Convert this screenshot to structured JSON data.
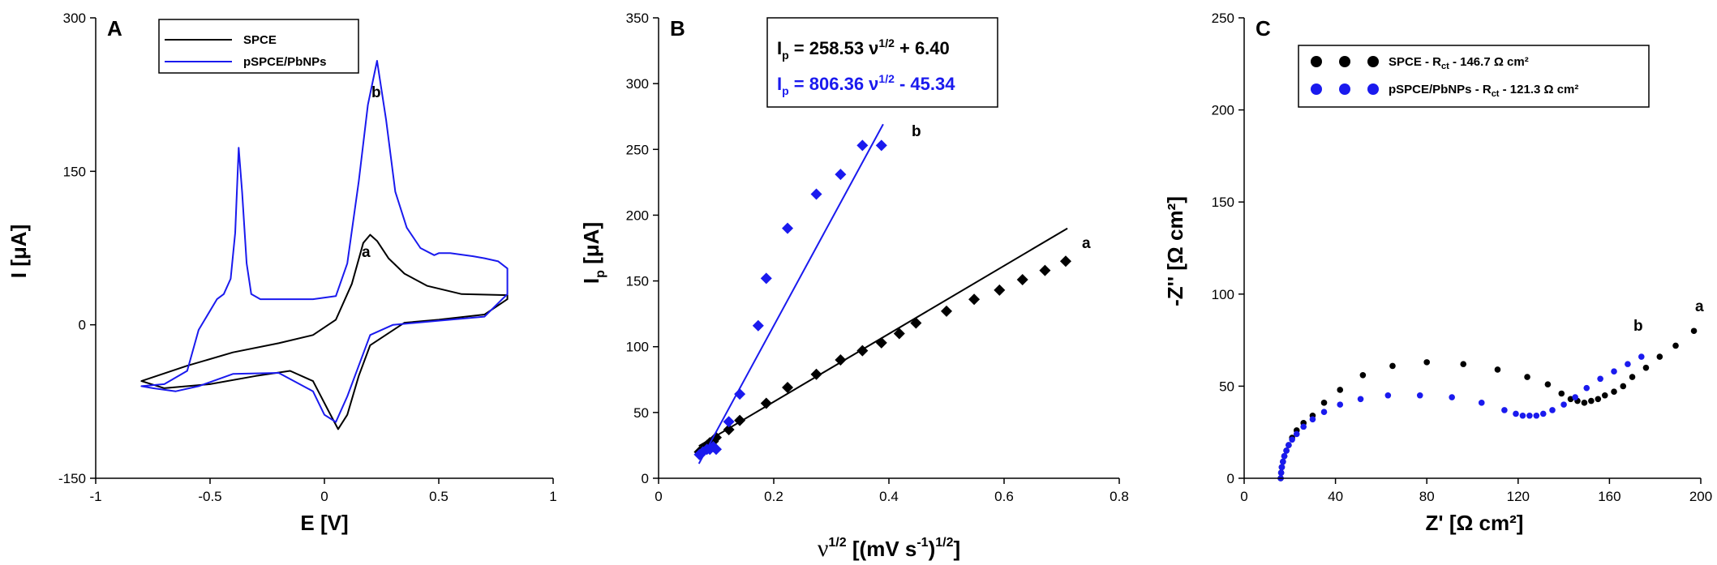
{
  "colors": {
    "black": "#000000",
    "blue": "#1a1aee"
  },
  "panels": [
    {
      "chart_data": {
        "type": "line",
        "panel_label": "A",
        "xlabel": "E [V]",
        "ylabel": "I [μA]",
        "xlim": [
          -1,
          1
        ],
        "ylim": [
          -150,
          300
        ],
        "x_ticks": [
          "-1",
          "-0.5",
          "0",
          "0.5",
          "1"
        ],
        "y_ticks": [
          "-150",
          "0",
          "150",
          "300"
        ],
        "legend": [
          "SPCE",
          "pSPCE/PbNPs"
        ],
        "curve_labels": [
          "a",
          "b"
        ],
        "series": [
          {
            "name": "SPCE",
            "color": "#000000",
            "x": [
              -0.8,
              -0.6,
              -0.4,
              -0.2,
              -0.05,
              0.05,
              0.12,
              0.17,
              0.2,
              0.23,
              0.28,
              0.35,
              0.45,
              0.6,
              0.8,
              0.8,
              0.7,
              0.5,
              0.35,
              0.2,
              0.15,
              0.1,
              0.06,
              0.02,
              -0.05,
              -0.15,
              -0.3,
              -0.5,
              -0.7,
              -0.8
            ],
            "y": [
              -55,
              -40,
              -27,
              -18,
              -10,
              5,
              40,
              80,
              88,
              82,
              65,
              50,
              38,
              30,
              29,
              25,
              10,
              5,
              2,
              -20,
              -50,
              -88,
              -102,
              -85,
              -55,
              -45,
              -50,
              -58,
              -62,
              -55
            ]
          },
          {
            "name": "pSPCE/PbNPs",
            "color": "#1a1aee",
            "x": [
              -0.8,
              -0.7,
              -0.6,
              -0.55,
              -0.47,
              -0.44,
              -0.41,
              -0.39,
              -0.375,
              -0.36,
              -0.34,
              -0.32,
              -0.28,
              -0.2,
              -0.05,
              0.05,
              0.1,
              0.15,
              0.19,
              0.23,
              0.27,
              0.31,
              0.36,
              0.42,
              0.48,
              0.5,
              0.55,
              0.65,
              0.7,
              0.76,
              0.8,
              0.8,
              0.7,
              0.5,
              0.3,
              0.2,
              0.15,
              0.1,
              0.05,
              0.0,
              -0.05,
              -0.2,
              -0.4,
              -0.55,
              -0.65,
              -0.75,
              -0.8
            ],
            "y": [
              -60,
              -58,
              -45,
              -5,
              25,
              30,
              45,
              90,
              173,
              130,
              60,
              30,
              25,
              25,
              25,
              28,
              60,
              140,
              215,
              258,
              200,
              130,
              95,
              75,
              68,
              70,
              70,
              67,
              65,
              62,
              55,
              30,
              8,
              4,
              0,
              -10,
              -40,
              -70,
              -95,
              -88,
              -65,
              -47,
              -48,
              -60,
              -65,
              -62,
              -60
            ]
          }
        ]
      }
    },
    {
      "chart_data": {
        "type": "scatter",
        "panel_label": "B",
        "xlabel": "ν^1/2 [(mV s^-1)^1/2]",
        "ylabel": "I_p [μA]",
        "xlim": [
          0,
          0.8
        ],
        "ylim": [
          0,
          350
        ],
        "x_ticks": [
          "0",
          "0.2",
          "0.4",
          "0.6",
          "0.8"
        ],
        "y_ticks": [
          "0",
          "50",
          "100",
          "150",
          "200",
          "250",
          "300",
          "350"
        ],
        "equations": [
          {
            "pre": "I",
            "sub": "p",
            "mid": " = 258.53 ν",
            "sup": "1/2",
            "post": " + 6.40",
            "color": "#000000"
          },
          {
            "pre": "I",
            "sub": "p",
            "mid": " = 806.36 ν",
            "sup": "1/2",
            "post": " - 45.34",
            "color": "#1a1aee"
          }
        ],
        "curve_labels": [
          "a",
          "b"
        ],
        "series": [
          {
            "name": "SPCE",
            "color": "#000000",
            "fit": {
              "slope": 258.53,
              "intercept": 6.4,
              "x_range": [
                0.07,
                0.71
              ]
            },
            "x": [
              0.071,
              0.077,
              0.084,
              0.089,
              0.095,
              0.1,
              0.122,
              0.141,
              0.187,
              0.224,
              0.274,
              0.316,
              0.354,
              0.387,
              0.418,
              0.447,
              0.5,
              0.548,
              0.592,
              0.632,
              0.671,
              0.707
            ],
            "y": [
              20,
              22,
              25,
              27,
              28,
              31,
              37,
              44,
              57,
              69,
              79,
              90,
              97,
              103,
              110,
              118,
              127,
              136,
              143,
              151,
              158,
              165
            ]
          },
          {
            "name": "pSPCE/PbNPs",
            "color": "#1a1aee",
            "fit": {
              "slope": 806.36,
              "intercept": -45.34,
              "x_range": [
                0.07,
                0.39
              ]
            },
            "x": [
              0.071,
              0.077,
              0.084,
              0.089,
              0.095,
              0.1,
              0.122,
              0.141,
              0.173,
              0.187,
              0.224,
              0.274,
              0.316,
              0.354,
              0.387
            ],
            "y": [
              18,
              20,
              22,
              22,
              24,
              22,
              43,
              64,
              116,
              152,
              190,
              216,
              231,
              253,
              253
            ]
          }
        ]
      }
    },
    {
      "chart_data": {
        "type": "scatter",
        "panel_label": "C",
        "xlabel": "Z' [Ω cm²]",
        "ylabel": "-Z'' [Ω cm²]",
        "xlim": [
          0,
          200
        ],
        "ylim": [
          0,
          250
        ],
        "x_ticks": [
          "0",
          "40",
          "80",
          "120",
          "160",
          "200"
        ],
        "y_ticks": [
          "0",
          "50",
          "100",
          "150",
          "200",
          "250"
        ],
        "legend": [
          {
            "pre": "SPCE - R",
            "sub": "ct",
            "post": " - 146.7 Ω cm²"
          },
          {
            "pre": "pSPCE/PbNPs - R",
            "sub": "ct",
            "post": " - 121.3 Ω cm²"
          }
        ],
        "curve_labels": [
          "a",
          "b"
        ],
        "series": [
          {
            "name": "SPCE",
            "color": "#000000",
            "x": [
              16,
              16.2,
              16.5,
              17,
              17.6,
              18.5,
              19.5,
              21,
              23,
              26,
              30,
              35,
              42,
              52,
              65,
              80,
              96,
              111,
              124,
              133,
              139,
              143,
              146,
              149,
              152,
              155,
              158,
              162,
              166,
              170,
              176,
              182,
              189,
              197
            ],
            "y": [
              0,
              3,
              6,
              9,
              12,
              15,
              18,
              22,
              26,
              30,
              34,
              41,
              48,
              56,
              61,
              63,
              62,
              59,
              55,
              51,
              46,
              43,
              42,
              41,
              42,
              43,
              45,
              47,
              50,
              55,
              60,
              66,
              72,
              80
            ],
            "point_size": 3.3
          },
          {
            "name": "pSPCE/PbNPs",
            "color": "#1a1aee",
            "x": [
              16,
              16.2,
              16.5,
              17,
              17.6,
              18.5,
              19.5,
              21,
              23,
              26,
              30,
              35,
              42,
              51,
              63,
              77,
              91,
              104,
              114,
              119,
              122,
              125,
              128,
              131,
              135,
              140,
              145,
              150,
              156,
              162,
              168,
              174
            ],
            "y": [
              0,
              3,
              6,
              9,
              12,
              15,
              18,
              21,
              24,
              28,
              32,
              36,
              40,
              43,
              45,
              45,
              44,
              41,
              37,
              35,
              34,
              34,
              34,
              35,
              37,
              40,
              44,
              49,
              54,
              58,
              62,
              66
            ],
            "point_size": 3.3
          }
        ]
      }
    }
  ]
}
